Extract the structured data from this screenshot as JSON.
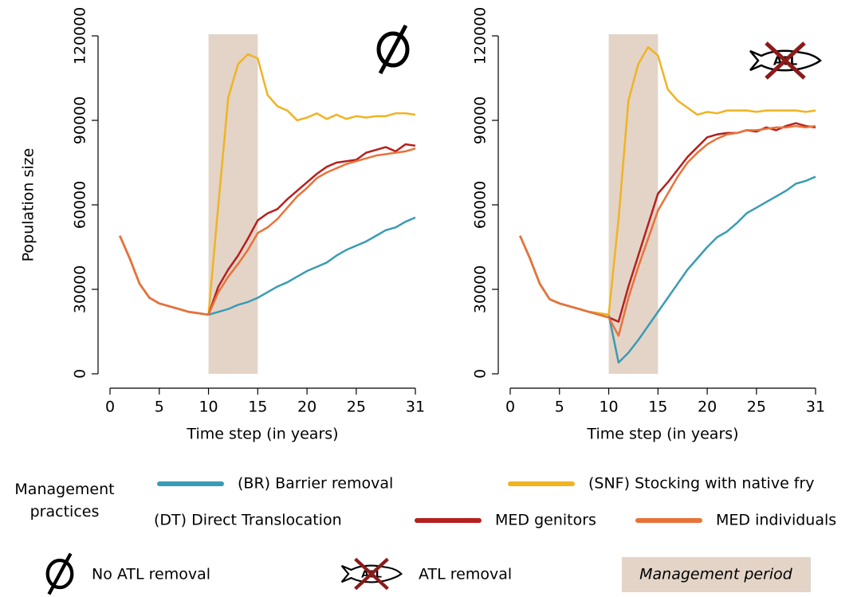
{
  "chart_data": [
    {
      "type": "line",
      "ylabel": "Population size",
      "xlabel": "Time step (in years)",
      "x": [
        1,
        2,
        3,
        4,
        5,
        6,
        7,
        8,
        9,
        10,
        11,
        12,
        13,
        14,
        15,
        16,
        17,
        18,
        19,
        20,
        21,
        22,
        23,
        24,
        25,
        26,
        27,
        28,
        29,
        30,
        31
      ],
      "xlim": [
        0,
        31
      ],
      "xticks": [
        0,
        5,
        10,
        15,
        20,
        25,
        31
      ],
      "ylim": [
        0,
        120000
      ],
      "yticks": [
        0,
        30000,
        60000,
        90000,
        120000
      ],
      "management_period": [
        10,
        15
      ],
      "series": [
        {
          "name": "(BR) Barrier removal",
          "color": "#3a9bb5",
          "values": [
            49000,
            41000,
            32000,
            27000,
            25000,
            24000,
            23000,
            22000,
            21500,
            21000,
            22000,
            23000,
            24500,
            25500,
            27000,
            29000,
            31000,
            32500,
            34500,
            36500,
            38000,
            39500,
            42000,
            44000,
            45500,
            47000,
            49000,
            51000,
            52000,
            54000,
            55500
          ]
        },
        {
          "name": "(SNF) Stocking with native fry",
          "color": "#f0b323",
          "values": [
            49000,
            41000,
            32000,
            27000,
            25000,
            24000,
            23000,
            22000,
            21500,
            21000,
            60000,
            98000,
            110000,
            113500,
            112000,
            99000,
            95000,
            93500,
            90000,
            91000,
            92500,
            90500,
            92000,
            90500,
            91500,
            91000,
            91500,
            91500,
            92500,
            92500,
            92000
          ]
        },
        {
          "name": "MED genitors",
          "color": "#b5201e",
          "values": [
            49000,
            41000,
            32000,
            27000,
            25000,
            24000,
            23000,
            22000,
            21500,
            21000,
            31000,
            37000,
            42000,
            48000,
            54500,
            57000,
            58500,
            62000,
            65000,
            68000,
            71000,
            73500,
            75000,
            75500,
            76000,
            78500,
            79500,
            80500,
            79000,
            81500,
            81000
          ]
        },
        {
          "name": "MED individuals",
          "color": "#e8733a",
          "values": [
            49000,
            41000,
            32000,
            27000,
            25000,
            24000,
            23000,
            22000,
            21500,
            21000,
            29000,
            34500,
            39000,
            44000,
            50000,
            52000,
            55000,
            59000,
            63000,
            66000,
            69500,
            71500,
            73000,
            74500,
            75500,
            76500,
            77500,
            78000,
            78500,
            79000,
            80000
          ]
        }
      ]
    },
    {
      "type": "line",
      "xlabel": "Time step (in years)",
      "x": [
        1,
        2,
        3,
        4,
        5,
        6,
        7,
        8,
        9,
        10,
        11,
        12,
        13,
        14,
        15,
        16,
        17,
        18,
        19,
        20,
        21,
        22,
        23,
        24,
        25,
        26,
        27,
        28,
        29,
        30,
        31
      ],
      "xlim": [
        0,
        31
      ],
      "xticks": [
        0,
        5,
        10,
        15,
        20,
        25,
        31
      ],
      "ylim": [
        0,
        120000
      ],
      "yticks": [
        0,
        30000,
        60000,
        90000,
        120000
      ],
      "management_period": [
        10,
        15
      ],
      "series": [
        {
          "color": "#3a9bb5",
          "values": [
            49000,
            41000,
            32000,
            26500,
            25000,
            24000,
            23000,
            22000,
            21500,
            21000,
            4000,
            7500,
            12000,
            17000,
            22000,
            27000,
            32000,
            37000,
            41000,
            45000,
            48500,
            50500,
            53500,
            57000,
            59000,
            61000,
            63000,
            65000,
            67500,
            68500,
            70000
          ]
        },
        {
          "color": "#f0b323",
          "values": [
            49000,
            41000,
            32000,
            26500,
            25000,
            24000,
            23000,
            22000,
            21500,
            21000,
            55000,
            97000,
            110000,
            116000,
            113000,
            101000,
            97000,
            94500,
            92000,
            93000,
            92500,
            93500,
            93500,
            93500,
            93000,
            93500,
            93500,
            93500,
            93500,
            93000,
            93500
          ]
        },
        {
          "color": "#b5201e",
          "values": [
            49000,
            41000,
            32000,
            26500,
            25000,
            24000,
            23000,
            22000,
            21000,
            20000,
            18500,
            31000,
            42000,
            53000,
            64000,
            68000,
            72500,
            77000,
            80500,
            84000,
            85000,
            85500,
            85500,
            86500,
            86000,
            87500,
            86500,
            88000,
            89000,
            88000,
            87500
          ]
        },
        {
          "color": "#e8733a",
          "values": [
            49000,
            41000,
            32000,
            26500,
            25000,
            24000,
            23000,
            22000,
            21000,
            20000,
            13500,
            27000,
            38000,
            48000,
            58000,
            64000,
            70000,
            75000,
            78500,
            81500,
            83500,
            85000,
            85500,
            86500,
            86500,
            87000,
            87500,
            87500,
            88000,
            87500,
            88000
          ]
        }
      ]
    }
  ],
  "legend": {
    "title": "Management practices",
    "group": "(DT) Direct Translocation",
    "no_removal": "No ATL removal",
    "removal": "ATL removal",
    "period": "Management period",
    "icon_text": "ATL"
  }
}
